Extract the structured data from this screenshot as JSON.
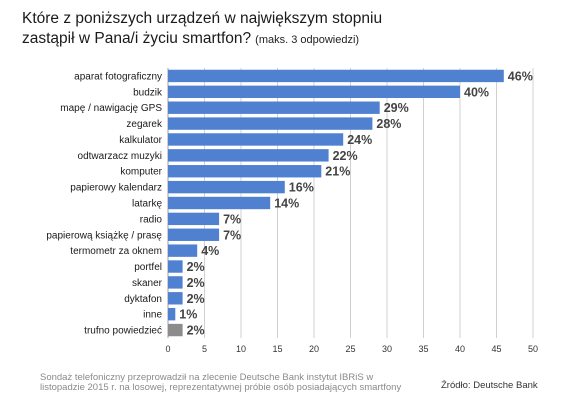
{
  "title_line1": "Które z poniższych urządzeń w największym stopniu",
  "title_line2": "zastąpił w Pana/i życiu smartfon?",
  "title_note": "(maks. 3 odpowiedzi)",
  "footer_note": "Sondaż telefoniczny przeprowadził na zlecenie Deutsche Bank instytut IBRiS w listopadzie 2015 r. na losowej, reprezentatywnej próbie osób posiadających smartfony",
  "source": "Źródło: Deutsche Bank",
  "colors": {
    "bar": "#4f81d0",
    "bar_last": "#8c8c8c",
    "grid": "#d0d0d0"
  },
  "chart_data": {
    "type": "bar",
    "orientation": "horizontal",
    "categories": [
      "aparat fotograficzny",
      "budzik",
      "mapę / nawigację GPS",
      "zegarek",
      "kalkulator",
      "odtwarzacz muzyki",
      "komputer",
      "papierowy kalendarz",
      "latarkę",
      "radio",
      "papierową książkę / prasę",
      "termometr za oknem",
      "portfel",
      "skaner",
      "dyktafon",
      "inne",
      "trufno powiedzieć"
    ],
    "values": [
      46,
      40,
      29,
      28,
      24,
      22,
      21,
      16,
      14,
      7,
      7,
      4,
      2,
      2,
      2,
      1,
      2
    ],
    "value_labels": [
      "46%",
      "40%",
      "29%",
      "28%",
      "24%",
      "22%",
      "21%",
      "16%",
      "14%",
      "7%",
      "7%",
      "4%",
      "2%",
      "2%",
      "2%",
      "1%",
      "2%"
    ],
    "xlim": [
      0,
      50
    ],
    "xticks": [
      0,
      5,
      10,
      15,
      20,
      25,
      30,
      35,
      40,
      45,
      50
    ],
    "grid": true,
    "legend": "none"
  }
}
